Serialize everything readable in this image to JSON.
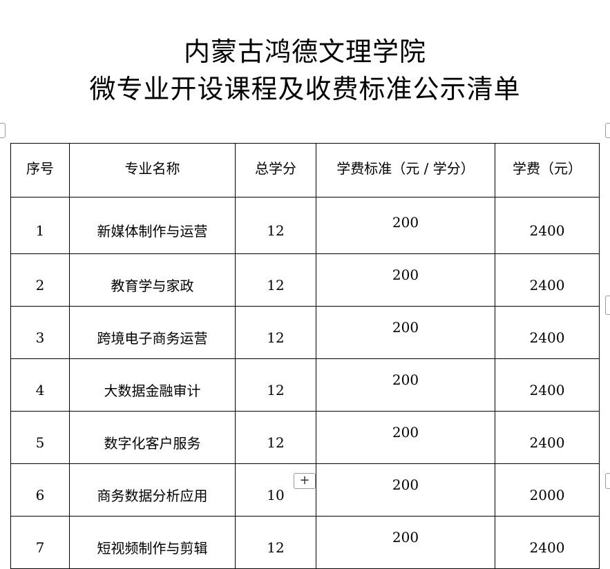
{
  "title": {
    "line1": "内蒙古鸿德文理学院",
    "line2": "微专业开设课程及收费标准公示清单"
  },
  "table": {
    "headers": [
      "序号",
      "专业名称",
      "总学分",
      "学费标准（元 / 学分）",
      "学费（元）"
    ],
    "rows": [
      [
        "1",
        "新媒体制作与运营",
        "12",
        "200",
        "2400"
      ],
      [
        "2",
        "教育学与家政",
        "12",
        "200",
        "2400"
      ],
      [
        "3",
        "跨境电子商务运营",
        "12",
        "200",
        "2400"
      ],
      [
        "4",
        "大数据金融审计",
        "12",
        "200",
        "2400"
      ],
      [
        "5",
        "数字化客户服务",
        "12",
        "200",
        "2400"
      ],
      [
        "6",
        "商务数据分析应用",
        "10",
        "200",
        "2000"
      ],
      [
        "7",
        "短视频制作与剪辑",
        "12",
        "200",
        "2400"
      ]
    ]
  },
  "add_row_label": "+"
}
